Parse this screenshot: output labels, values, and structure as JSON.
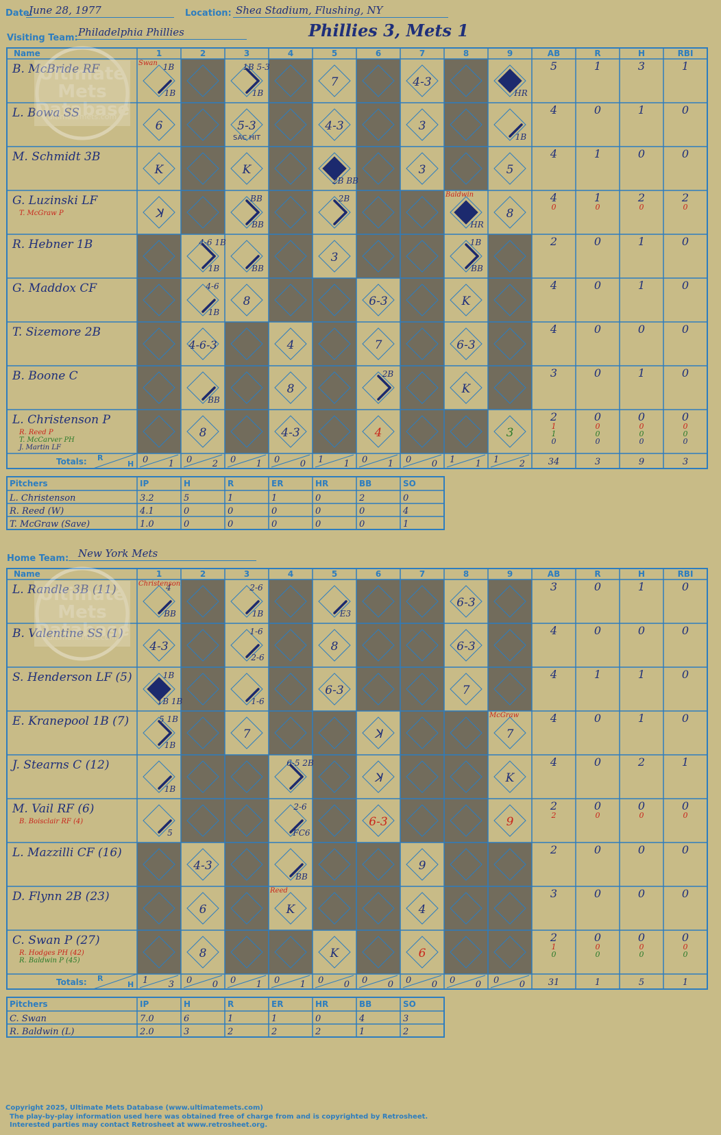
{
  "game": {
    "date_label": "Date:",
    "date": "June 28, 1977",
    "location_label": "Location:",
    "location": "Shea Stadium, Flushing, NY",
    "visiting_label": "Visiting Team:",
    "visiting_team": "Philadelphia Phillies",
    "result": "Phillies 3, Mets 1",
    "home_label": "Home Team:",
    "home_team": "New York Mets"
  },
  "watermark": [
    "Ultimate",
    "Mets",
    "Database",
    "ultimatemets.com"
  ],
  "headers": {
    "name": "Name",
    "innings": [
      "1",
      "2",
      "3",
      "4",
      "5",
      "6",
      "7",
      "8",
      "9"
    ],
    "stats": [
      "AB",
      "R",
      "H",
      "RBI"
    ],
    "totals": "Totals:",
    "r": "R",
    "h": "H"
  },
  "pitch_headers": [
    "Pitchers",
    "IP",
    "H",
    "R",
    "ER",
    "HR",
    "BB",
    "SO"
  ],
  "colors": {
    "background": "#c8bb87",
    "grid": "#2d7dbf",
    "text": "#1f2f7a",
    "shade": "#726c5c",
    "red": "#c8251c",
    "green": "#2a7a2a"
  },
  "visitor": {
    "top": 70,
    "rows": [
      {
        "name": "B. McBride RF",
        "subs": [],
        "stats": [
          [
            "5",
            "1",
            "3",
            "1"
          ]
        ],
        "shade": [
          2,
          4,
          6,
          8
        ],
        "cells": [
          {
            "i": 1,
            "c": "1B",
            "t": "1B",
            "lines": [
              3
            ],
            "note": "Swan"
          },
          {
            "i": 3,
            "t": "1B 5-3",
            "c": "1B",
            "lines": [
              3,
              4
            ]
          },
          {
            "i": 5,
            "c": "7"
          },
          {
            "i": 7,
            "c": "4-3"
          },
          {
            "i": 9,
            "fill": true,
            "c": "HR"
          }
        ]
      },
      {
        "name": "L. Bowa SS",
        "subs": [],
        "stats": [
          [
            "4",
            "0",
            "1",
            "0"
          ]
        ],
        "shade": [
          2,
          4,
          6,
          8
        ],
        "cells": [
          {
            "i": 1,
            "c": "6"
          },
          {
            "i": 3,
            "c": "5-3",
            "bl": "SAC HIT"
          },
          {
            "i": 5,
            "c": "4-3"
          },
          {
            "i": 7,
            "c": "3"
          },
          {
            "i": 9,
            "c": "1B",
            "lines": [
              3
            ]
          }
        ]
      },
      {
        "name": "M. Schmidt 3B",
        "subs": [],
        "stats": [
          [
            "4",
            "1",
            "0",
            "0"
          ]
        ],
        "shade": [
          2,
          4,
          6,
          8
        ],
        "cells": [
          {
            "i": 1,
            "c": "K"
          },
          {
            "i": 3,
            "c": "K"
          },
          {
            "i": 5,
            "fill": true,
            "c": "2B BB"
          },
          {
            "i": 7,
            "c": "3"
          },
          {
            "i": 9,
            "c": "5"
          }
        ]
      },
      {
        "name": "G. Luzinski LF",
        "subs": [
          {
            "n": "T. McGraw P",
            "col": "red"
          }
        ],
        "stats": [
          [
            "4",
            "1",
            "2",
            "2"
          ],
          [
            "0",
            "0",
            "0",
            "0"
          ]
        ],
        "shade": [
          2,
          4,
          6,
          7
        ],
        "cells": [
          {
            "i": 1,
            "c": "ꓘ"
          },
          {
            "i": 3,
            "t": "BB",
            "c": "BB",
            "lines": [
              3,
              4
            ]
          },
          {
            "i": 5,
            "t": "2B",
            "lines": [
              3,
              4
            ]
          },
          {
            "i": 8,
            "fill": true,
            "c": "HR",
            "note": "Baldwin"
          },
          {
            "i": 9,
            "c": "8"
          }
        ]
      },
      {
        "name": "R. Hebner 1B",
        "subs": [],
        "stats": [
          [
            "2",
            "0",
            "1",
            "0"
          ]
        ],
        "shade": [
          1,
          4,
          6,
          7,
          9
        ],
        "cells": [
          {
            "i": 2,
            "t": "4-6 1B",
            "c": "1B",
            "lines": [
              3,
              4
            ]
          },
          {
            "i": 3,
            "c": "BB",
            "lines": [
              3
            ]
          },
          {
            "i": 5,
            "c": "3"
          },
          {
            "i": 8,
            "t": "1B",
            "c": "BB",
            "lines": [
              3,
              4
            ]
          }
        ]
      },
      {
        "name": "G. Maddox CF",
        "subs": [],
        "stats": [
          [
            "4",
            "0",
            "1",
            "0"
          ]
        ],
        "shade": [
          1,
          4,
          5,
          7,
          9
        ],
        "cells": [
          {
            "i": 2,
            "t": "4-6",
            "c": "1B",
            "lines": [
              3
            ]
          },
          {
            "i": 3,
            "c": "8"
          },
          {
            "i": 6,
            "c": "6-3"
          },
          {
            "i": 8,
            "c": "K"
          }
        ]
      },
      {
        "name": "T. Sizemore 2B",
        "subs": [],
        "stats": [
          [
            "4",
            "0",
            "0",
            "0"
          ]
        ],
        "shade": [
          1,
          3,
          5,
          7,
          9
        ],
        "cells": [
          {
            "i": 2,
            "c": "4-6-3"
          },
          {
            "i": 4,
            "c": "4"
          },
          {
            "i": 6,
            "c": "7"
          },
          {
            "i": 8,
            "c": "6-3"
          }
        ]
      },
      {
        "name": "B. Boone C",
        "subs": [],
        "stats": [
          [
            "3",
            "0",
            "1",
            "0"
          ]
        ],
        "shade": [
          1,
          3,
          5,
          7,
          9
        ],
        "cells": [
          {
            "i": 2,
            "c": "BB",
            "lines": [
              3
            ]
          },
          {
            "i": 4,
            "c": "8"
          },
          {
            "i": 6,
            "t": "2B",
            "lines": [
              3,
              4
            ]
          },
          {
            "i": 8,
            "c": "K"
          }
        ]
      },
      {
        "name": "L. Christenson P",
        "subs": [
          {
            "n": "R. Reed P",
            "col": "red"
          },
          {
            "n": "T. McCarver PH",
            "col": "green"
          },
          {
            "n": "J. Martin LF",
            "col": "text"
          }
        ],
        "stats": [
          [
            "2",
            "0",
            "0",
            "0"
          ],
          [
            "1",
            "0",
            "0",
            "0"
          ],
          [
            "1",
            "0",
            "0",
            "0"
          ],
          [
            "0",
            "0",
            "0",
            "0"
          ]
        ],
        "shade": [
          1,
          3,
          5,
          7,
          8
        ],
        "cells": [
          {
            "i": 2,
            "c": "8"
          },
          {
            "i": 4,
            "c": "4-3"
          },
          {
            "i": 6,
            "c": "4",
            "col": "red"
          },
          {
            "i": 9,
            "c": "3",
            "col": "green"
          }
        ]
      }
    ],
    "totals": [
      [
        "0",
        "1"
      ],
      [
        "0",
        "2"
      ],
      [
        "0",
        "1"
      ],
      [
        "0",
        "0"
      ],
      [
        "1",
        "1"
      ],
      [
        "0",
        "1"
      ],
      [
        "0",
        "0"
      ],
      [
        "1",
        "1"
      ],
      [
        "1",
        "2"
      ]
    ],
    "stat_totals": [
      "34",
      "3",
      "9",
      "3"
    ],
    "pitchers": [
      [
        "L. Christenson",
        "3.2",
        "5",
        "1",
        "1",
        "0",
        "2",
        "0"
      ],
      [
        "R. Reed (W)",
        "4.1",
        "0",
        "0",
        "0",
        "0",
        "0",
        "4"
      ],
      [
        "T. McGraw (Save)",
        "1.0",
        "0",
        "0",
        "0",
        "0",
        "0",
        "1"
      ]
    ]
  },
  "home": {
    "top": 830,
    "rows": [
      {
        "name": "L. Randle 3B (11)",
        "subs": [],
        "stats": [
          [
            "3",
            "0",
            "1",
            "0"
          ]
        ],
        "shade": [
          2,
          4,
          6,
          7,
          9
        ],
        "cells": [
          {
            "i": 1,
            "t": "4",
            "c": "BB",
            "lines": [
              3
            ],
            "note": "Christenson"
          },
          {
            "i": 3,
            "t": "2-6",
            "c": "1B",
            "lines": [
              3
            ]
          },
          {
            "i": 5,
            "c": "E3",
            "lines": [
              3
            ]
          },
          {
            "i": 8,
            "c": "6-3"
          }
        ]
      },
      {
        "name": "B. Valentine SS (1)",
        "subs": [],
        "stats": [
          [
            "4",
            "0",
            "0",
            "0"
          ]
        ],
        "shade": [
          2,
          4,
          6,
          7,
          9
        ],
        "cells": [
          {
            "i": 1,
            "c": "4-3"
          },
          {
            "i": 3,
            "t": "1-6",
            "c": "2-6",
            "lines": [
              3
            ]
          },
          {
            "i": 5,
            "c": "8"
          },
          {
            "i": 8,
            "c": "6-3"
          }
        ]
      },
      {
        "name": "S. Henderson LF (5)",
        "subs": [],
        "stats": [
          [
            "4",
            "1",
            "1",
            "0"
          ]
        ],
        "shade": [
          2,
          4,
          6,
          7,
          9
        ],
        "cells": [
          {
            "i": 1,
            "fill": true,
            "t": "1B",
            "c": "1B 1B"
          },
          {
            "i": 3,
            "c": "1-6",
            "lines": [
              3
            ]
          },
          {
            "i": 5,
            "c": "6-3"
          },
          {
            "i": 8,
            "c": "7"
          }
        ]
      },
      {
        "name": "E. Kranepool 1B (7)",
        "subs": [],
        "stats": [
          [
            "4",
            "0",
            "1",
            "0"
          ]
        ],
        "shade": [
          2,
          4,
          5,
          7,
          8
        ],
        "cells": [
          {
            "i": 1,
            "t": "5 1B",
            "c": "1B",
            "lines": [
              3,
              4
            ]
          },
          {
            "i": 3,
            "c": "7"
          },
          {
            "i": 6,
            "c": "ꓘ"
          },
          {
            "i": 9,
            "c": "7",
            "note": "McGraw"
          }
        ]
      },
      {
        "name": "J. Stearns C (12)",
        "subs": [],
        "stats": [
          [
            "4",
            "0",
            "2",
            "1"
          ]
        ],
        "shade": [
          2,
          3,
          5,
          7,
          8
        ],
        "cells": [
          {
            "i": 1,
            "c": "1B",
            "lines": [
              3
            ]
          },
          {
            "i": 4,
            "t": "6-5 2B",
            "lines": [
              3,
              4
            ]
          },
          {
            "i": 6,
            "c": "ꓘ"
          },
          {
            "i": 9,
            "c": "K"
          }
        ]
      },
      {
        "name": "M. Vail RF (6)",
        "subs": [
          {
            "n": "B. Boisclair RF (4)",
            "col": "red"
          }
        ],
        "stats": [
          [
            "2",
            "0",
            "0",
            "0"
          ],
          [
            "2",
            "0",
            "0",
            "0"
          ]
        ],
        "shade": [
          2,
          3,
          5,
          7,
          8
        ],
        "cells": [
          {
            "i": 1,
            "c": "5",
            "lines": [
              3
            ]
          },
          {
            "i": 4,
            "t": "2-6",
            "c": "FC6",
            "lines": [
              3
            ]
          },
          {
            "i": 6,
            "c": "6-3",
            "col": "red"
          },
          {
            "i": 9,
            "c": "9",
            "col": "red"
          }
        ]
      },
      {
        "name": "L. Mazzilli CF (16)",
        "subs": [],
        "stats": [
          [
            "2",
            "0",
            "0",
            "0"
          ]
        ],
        "shade": [
          1,
          3,
          5,
          6,
          8,
          9
        ],
        "cells": [
          {
            "i": 2,
            "c": "4-3"
          },
          {
            "i": 4,
            "c": "BB",
            "lines": [
              3
            ]
          },
          {
            "i": 7,
            "c": "9"
          }
        ]
      },
      {
        "name": "D. Flynn 2B (23)",
        "subs": [],
        "stats": [
          [
            "3",
            "0",
            "0",
            "0"
          ]
        ],
        "shade": [
          1,
          3,
          5,
          6,
          8,
          9
        ],
        "cells": [
          {
            "i": 2,
            "c": "6"
          },
          {
            "i": 4,
            "c": "K",
            "note": "Reed"
          },
          {
            "i": 7,
            "c": "4"
          }
        ]
      },
      {
        "name": "C. Swan P (27)",
        "subs": [
          {
            "n": "R. Hodges PH (42)",
            "col": "red"
          },
          {
            "n": "R. Baldwin P (45)",
            "col": "green"
          }
        ],
        "stats": [
          [
            "2",
            "0",
            "0",
            "0"
          ],
          [
            "1",
            "0",
            "0",
            "0"
          ],
          [
            "0",
            "0",
            "0",
            "0"
          ]
        ],
        "shade": [
          1,
          3,
          4,
          6,
          8,
          9
        ],
        "cells": [
          {
            "i": 2,
            "c": "8"
          },
          {
            "i": 5,
            "c": "K"
          },
          {
            "i": 7,
            "c": "6",
            "col": "red"
          }
        ]
      }
    ],
    "totals": [
      [
        "1",
        "3"
      ],
      [
        "0",
        "0"
      ],
      [
        "0",
        "1"
      ],
      [
        "0",
        "1"
      ],
      [
        "0",
        "0"
      ],
      [
        "0",
        "0"
      ],
      [
        "0",
        "0"
      ],
      [
        "0",
        "0"
      ],
      [
        "0",
        "0"
      ]
    ],
    "stat_totals": [
      "31",
      "1",
      "5",
      "1"
    ],
    "pitchers": [
      [
        "C. Swan",
        "7.0",
        "6",
        "1",
        "1",
        "0",
        "4",
        "3"
      ],
      [
        "R. Baldwin (L)",
        "2.0",
        "3",
        "2",
        "2",
        "2",
        "1",
        "2"
      ]
    ]
  },
  "footer": [
    "Copyright 2025, Ultimate Mets Database (www.ultimatemets.com)",
    "The play-by-play information used here was obtained free of charge from and is copyrighted by Retrosheet.",
    "Interested parties may contact Retrosheet at www.retrosheet.org."
  ]
}
